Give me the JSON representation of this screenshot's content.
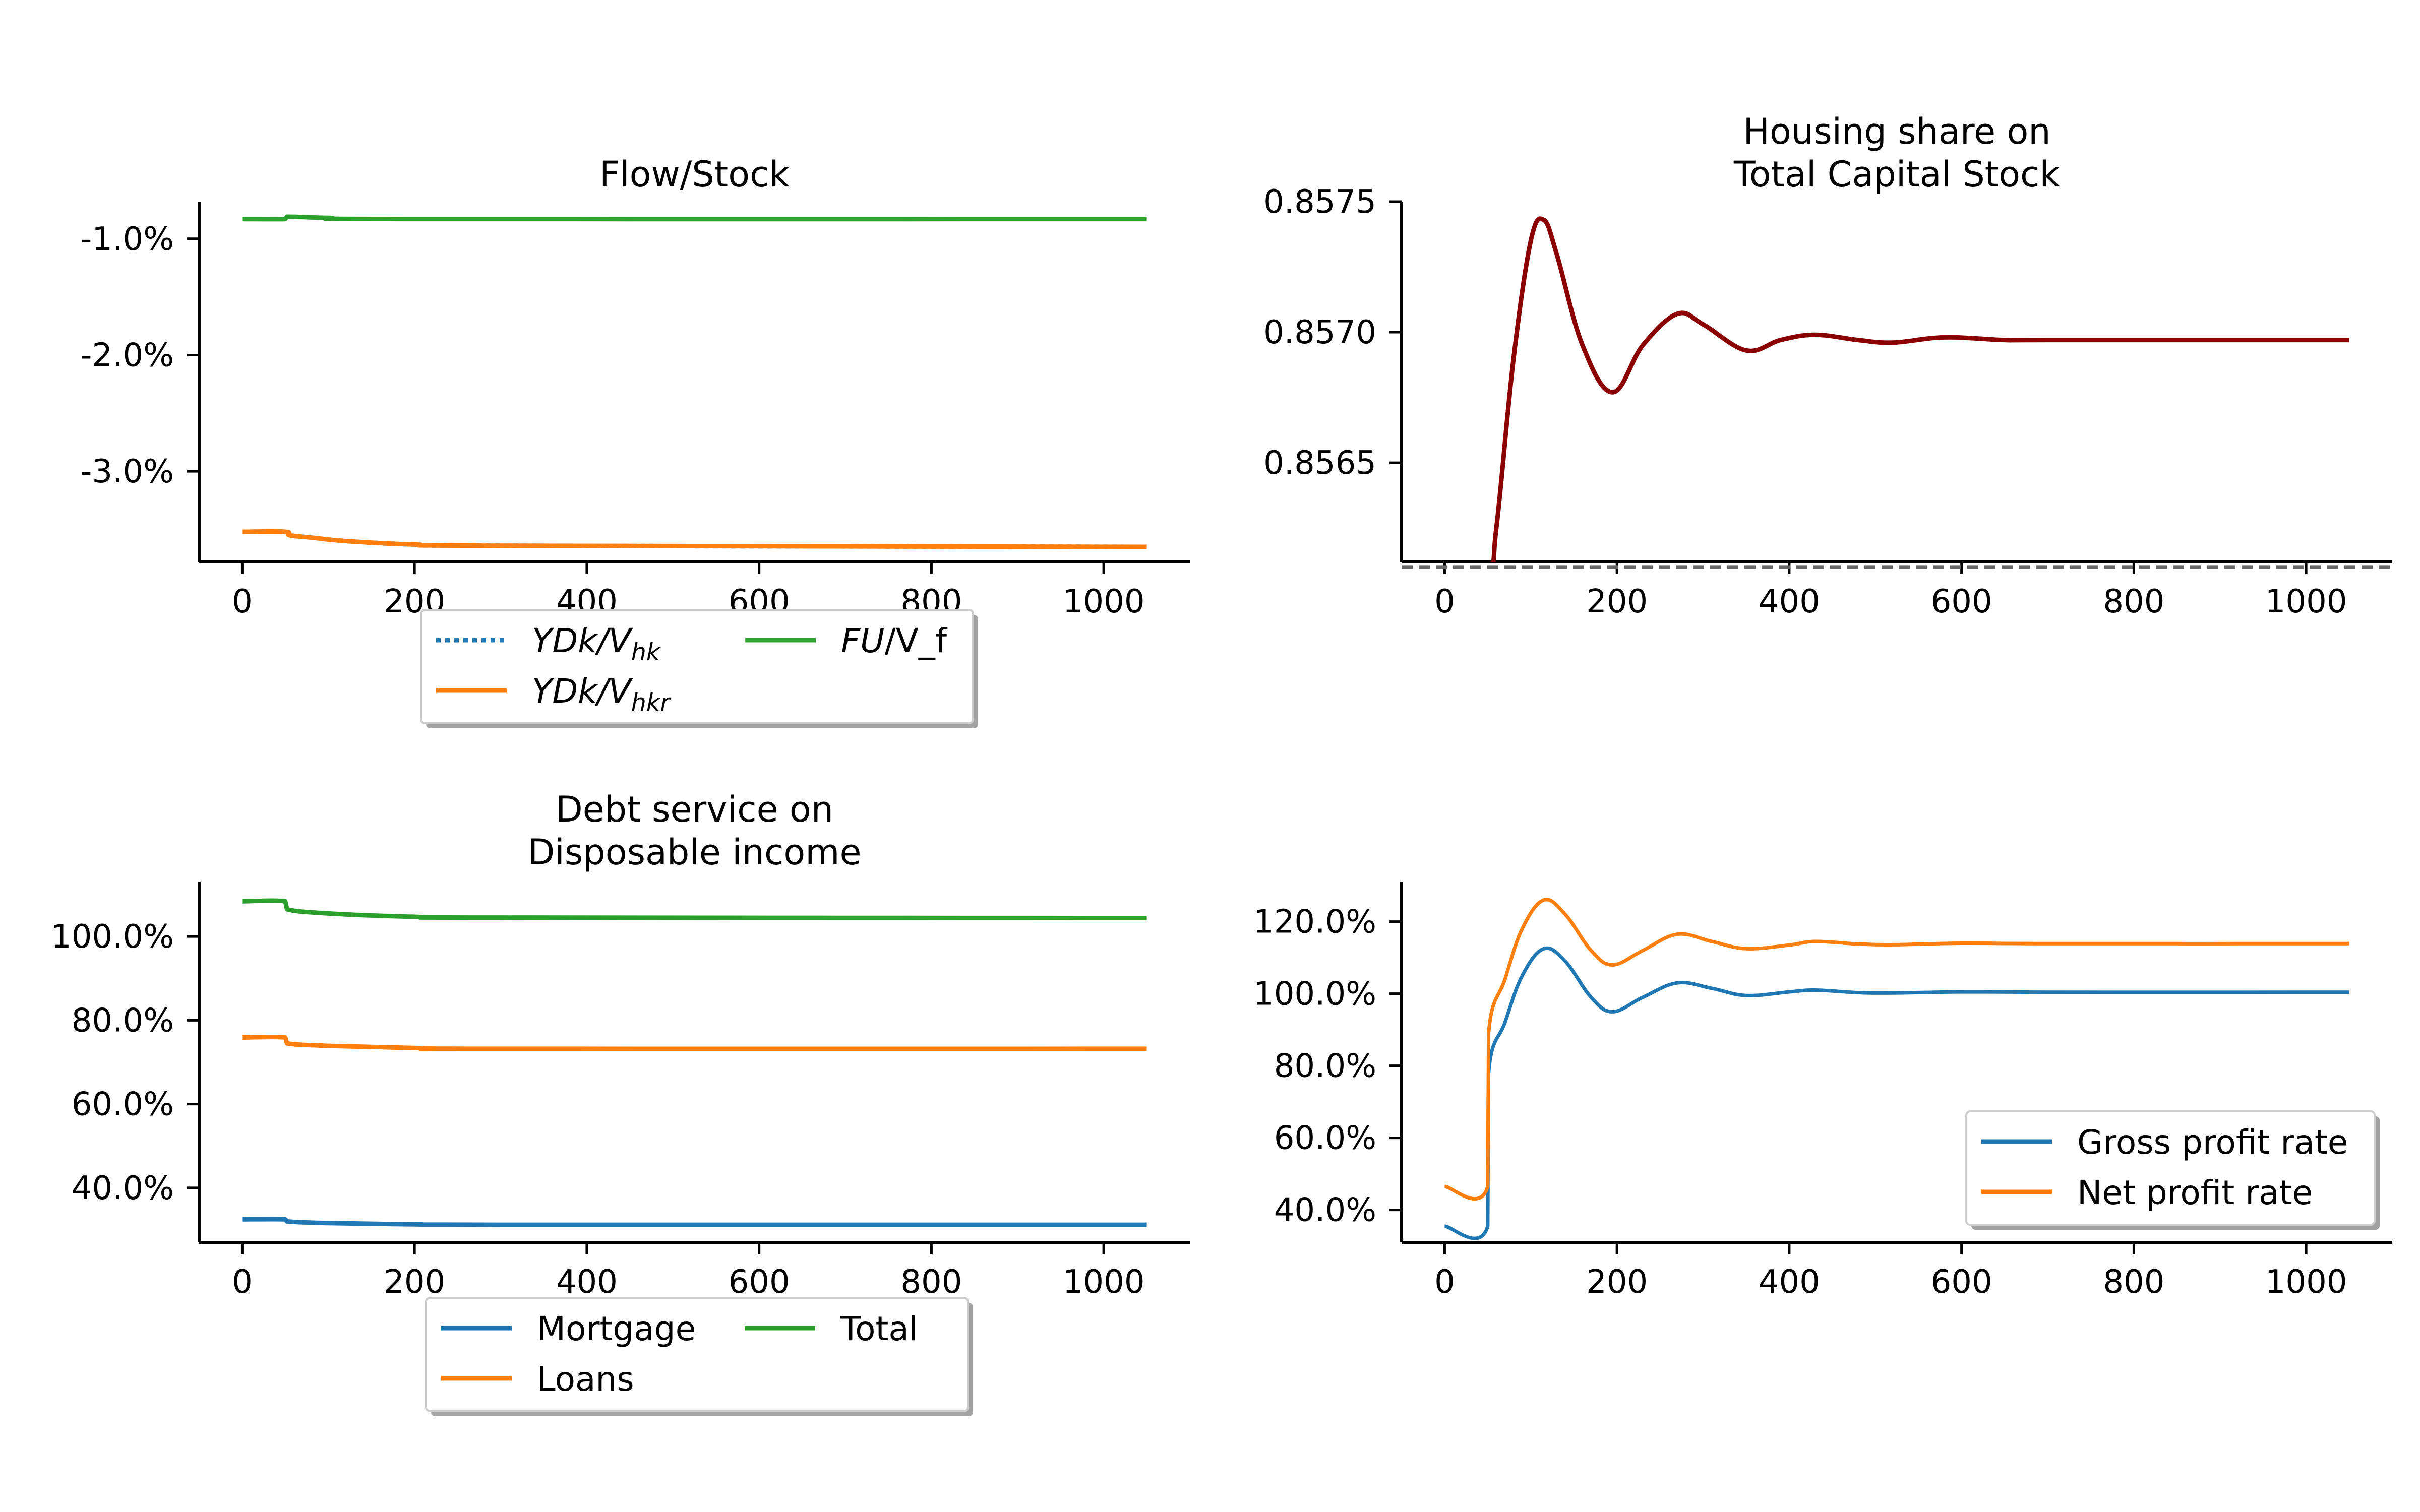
{
  "chart_data": [
    {
      "id": "flow-stock",
      "type": "line",
      "title": "Flow/Stock",
      "xlabel": "",
      "ylabel": "",
      "xlim": [
        -50,
        1100
      ],
      "ylim": [
        -3.78,
        -0.68
      ],
      "xticks": [
        0,
        200,
        400,
        600,
        800,
        1000
      ],
      "xtick_labels": [
        "0",
        "200",
        "400",
        "600",
        "800",
        "1000"
      ],
      "yticks": [
        -1.0,
        -2.0,
        -3.0
      ],
      "ytick_labels": [
        "-1.0%",
        "-2.0%",
        "-3.0%"
      ],
      "legend": {
        "placement": "below",
        "columns": 2
      },
      "series": [
        {
          "name_pre": "YDk/V",
          "name_sub": "hk",
          "name_post": "",
          "color": "#1f77b4",
          "style": "dotted",
          "x": [
            0,
            50,
            55,
            80,
            120,
            200,
            300,
            1050
          ],
          "y": [
            -3.52,
            -3.52,
            -3.55,
            -3.57,
            -3.6,
            -3.63,
            -3.64,
            -3.65
          ]
        },
        {
          "name_pre": "YDk/V",
          "name_sub": "hkr",
          "name_post": "",
          "color": "#ff7f0e",
          "style": "solid",
          "x": [
            0,
            50,
            55,
            80,
            120,
            200,
            300,
            1050
          ],
          "y": [
            -3.52,
            -3.52,
            -3.55,
            -3.57,
            -3.6,
            -3.63,
            -3.64,
            -3.65
          ]
        },
        {
          "name_pre": "FU",
          "name_sub": "",
          "name_post": "/V_f",
          "color": "#2ca02c",
          "style": "solid",
          "x": [
            0,
            50,
            52,
            100,
            200,
            1050
          ],
          "y": [
            -0.83,
            -0.83,
            -0.81,
            -0.82,
            -0.83,
            -0.83
          ]
        }
      ]
    },
    {
      "id": "housing-share",
      "type": "line",
      "title": "Housing share on\nTotal Capital Stock",
      "xlabel": "",
      "ylabel": "",
      "xlim": [
        -50,
        1100
      ],
      "ylim": [
        0.85612,
        0.8575
      ],
      "xticks": [
        0,
        200,
        400,
        600,
        800,
        1000
      ],
      "xtick_labels": [
        "0",
        "200",
        "400",
        "600",
        "800",
        "1000"
      ],
      "yticks": [
        0.8575,
        0.857,
        0.8565
      ],
      "ytick_labels": [
        "0.8575",
        "0.8570",
        "0.8565"
      ],
      "reference_line": {
        "y": 0.8561,
        "color": "#666666",
        "style": "dashed"
      },
      "series": [
        {
          "name": "",
          "color": "#8b0000",
          "style": "solid",
          "x": [
            0,
            50,
            60,
            80,
            100,
            115,
            130,
            160,
            195,
            230,
            270,
            300,
            350,
            390,
            430,
            480,
            520,
            580,
            650,
            700,
            1050
          ],
          "y": [
            0.8561,
            0.8561,
            0.85625,
            0.8569,
            0.85735,
            0.85743,
            0.8573,
            0.85695,
            0.85677,
            0.85695,
            0.85707,
            0.85703,
            0.85693,
            0.85697,
            0.85699,
            0.85697,
            0.85696,
            0.85698,
            0.85697,
            0.85697,
            0.85697
          ]
        }
      ]
    },
    {
      "id": "debt-service",
      "type": "line",
      "title": "Debt service on\nDisposable income",
      "xlabel": "",
      "ylabel": "",
      "xlim": [
        -50,
        1100
      ],
      "ylim": [
        27,
        113
      ],
      "xticks": [
        0,
        200,
        400,
        600,
        800,
        1000
      ],
      "xtick_labels": [
        "0",
        "200",
        "400",
        "600",
        "800",
        "1000"
      ],
      "yticks": [
        100,
        80,
        60,
        40
      ],
      "ytick_labels": [
        "100.0%",
        "80.0%",
        "60.0%",
        "40.0%"
      ],
      "legend": {
        "placement": "below",
        "columns": 2
      },
      "series": [
        {
          "name": "Mortgage",
          "color": "#1f77b4",
          "style": "solid",
          "x": [
            0,
            50,
            52,
            100,
            200,
            300,
            1050
          ],
          "y": [
            32.5,
            32.5,
            32.0,
            31.6,
            31.3,
            31.2,
            31.2
          ]
        },
        {
          "name": "Loans",
          "color": "#ff7f0e",
          "style": "solid",
          "x": [
            0,
            50,
            52,
            100,
            200,
            300,
            1050
          ],
          "y": [
            75.9,
            75.9,
            74.5,
            73.9,
            73.4,
            73.2,
            73.2
          ]
        },
        {
          "name": "Total",
          "color": "#2ca02c",
          "style": "solid",
          "x": [
            0,
            50,
            52,
            100,
            200,
            300,
            1050
          ],
          "y": [
            108.4,
            108.4,
            106.5,
            105.5,
            104.7,
            104.5,
            104.4
          ]
        }
      ]
    },
    {
      "id": "profit-rate",
      "type": "line",
      "title": "",
      "xlabel": "",
      "ylabel": "",
      "xlim": [
        -50,
        1100
      ],
      "ylim": [
        31,
        131
      ],
      "xticks": [
        0,
        200,
        400,
        600,
        800,
        1000
      ],
      "xtick_labels": [
        "0",
        "200",
        "400",
        "600",
        "800",
        "1000"
      ],
      "yticks": [
        120,
        100,
        80,
        60,
        40
      ],
      "ytick_labels": [
        "120.0%",
        "100.0%",
        "80.0%",
        "60.0%",
        "40.0%"
      ],
      "legend": {
        "placement": "lower-right",
        "columns": 1
      },
      "series": [
        {
          "name": "Gross profit rate",
          "color": "#1f77b4",
          "style": "solid",
          "x": [
            0,
            50,
            51,
            70,
            90,
            115,
            140,
            170,
            195,
            230,
            270,
            310,
            350,
            400,
            430,
            480,
            520,
            600,
            700,
            1050
          ],
          "y": [
            35.5,
            35.5,
            78,
            92,
            105,
            112.5,
            109,
            99,
            95,
            99,
            103,
            101.5,
            99.5,
            100.5,
            101,
            100.3,
            100.2,
            100.5,
            100.4,
            100.4
          ]
        },
        {
          "name": "Net profit rate",
          "color": "#ff7f0e",
          "style": "solid",
          "x": [
            0,
            50,
            51,
            70,
            90,
            115,
            140,
            170,
            195,
            230,
            270,
            310,
            350,
            400,
            430,
            480,
            520,
            600,
            700,
            1050
          ],
          "y": [
            46.5,
            46.5,
            89,
            104,
            118,
            126,
            122,
            112,
            108,
            112,
            116.5,
            114.5,
            112.5,
            113.5,
            114.5,
            113.8,
            113.6,
            114.0,
            113.9,
            113.9
          ]
        }
      ]
    }
  ]
}
